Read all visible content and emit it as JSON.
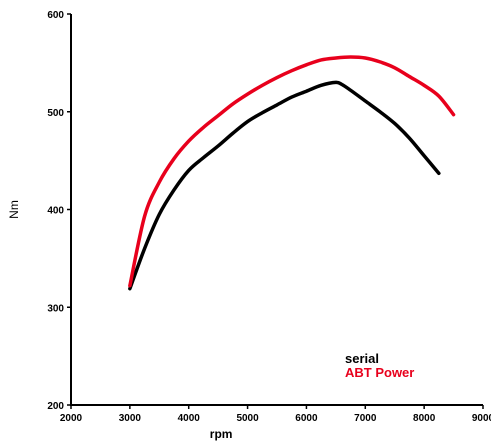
{
  "chart_data": {
    "type": "line",
    "title": "",
    "xlabel": "rpm",
    "ylabel": "Nm",
    "xlim": [
      2000,
      9000
    ],
    "ylim": [
      200,
      600
    ],
    "x_ticks": [
      "2000",
      "3000",
      "4000",
      "5000",
      "6000",
      "7000",
      "8000",
      "9000"
    ],
    "y_ticks": [
      "200",
      "300",
      "400",
      "500",
      "600"
    ],
    "grid": false,
    "legend_position": "bottom-right",
    "series": [
      {
        "name": "serial",
        "color": "#000000",
        "x": [
          3000,
          3250,
          3500,
          3750,
          4000,
          4250,
          4500,
          4750,
          5000,
          5250,
          5500,
          5750,
          6000,
          6250,
          6500,
          6600,
          6750,
          7000,
          7250,
          7500,
          7750,
          8000,
          8250
        ],
        "y": [
          319,
          360,
          395,
          420,
          440,
          453,
          465,
          478,
          490,
          499,
          507,
          515,
          521,
          527,
          530,
          528,
          522,
          511,
          500,
          488,
          473,
          455,
          437
        ]
      },
      {
        "name": "ABT Power",
        "color": "#e8001c",
        "x": [
          3000,
          3250,
          3500,
          3750,
          4000,
          4250,
          4500,
          4750,
          5000,
          5250,
          5500,
          5750,
          6000,
          6250,
          6500,
          6750,
          7000,
          7250,
          7500,
          7750,
          8000,
          8250,
          8500
        ],
        "y": [
          322,
          393,
          428,
          452,
          470,
          484,
          496,
          508,
          518,
          527,
          535,
          542,
          548,
          553,
          555,
          556,
          555,
          551,
          545,
          536,
          527,
          516,
          497
        ]
      }
    ]
  }
}
